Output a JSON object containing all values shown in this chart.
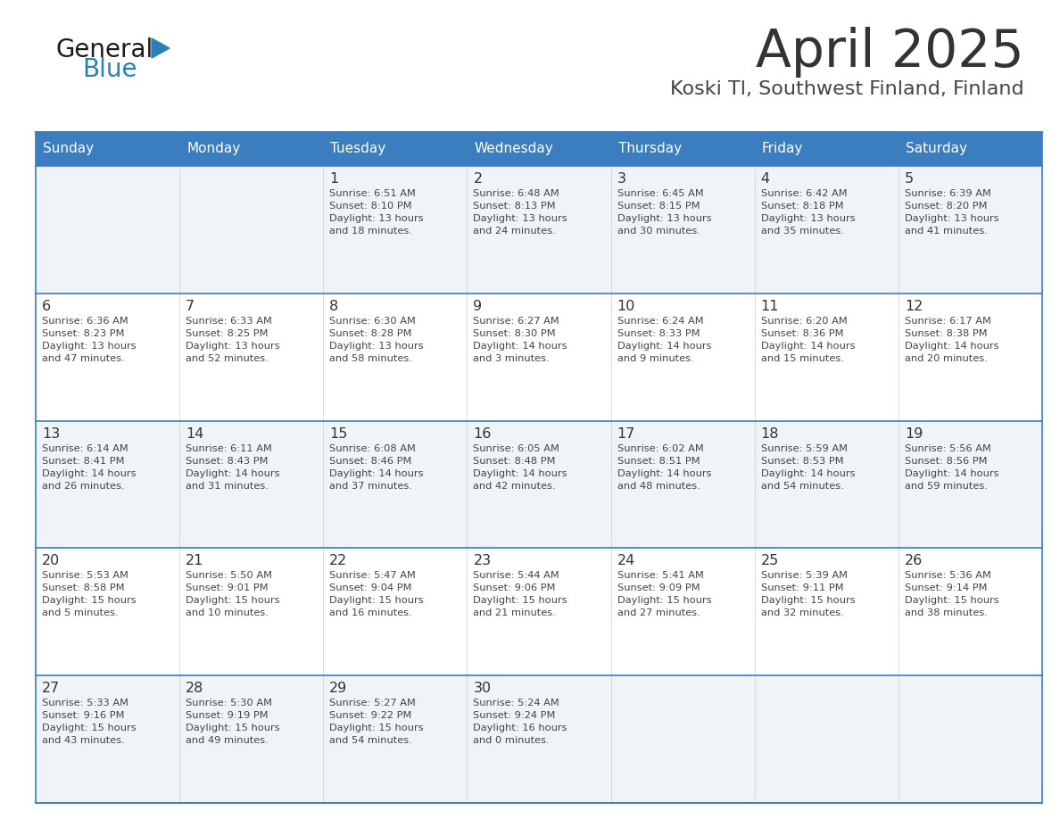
{
  "title": "April 2025",
  "subtitle": "Koski Tl, Southwest Finland, Finland",
  "days_of_week": [
    "Sunday",
    "Monday",
    "Tuesday",
    "Wednesday",
    "Thursday",
    "Friday",
    "Saturday"
  ],
  "header_bg": "#3a7ebf",
  "header_text": "#ffffff",
  "row_bg_odd": "#f0f4f8",
  "row_bg_even": "#ffffff",
  "cell_border_color": "#3a7ebf",
  "row_divider_color": "#3a7ebf",
  "day_number_color": "#333333",
  "info_text_color": "#444444",
  "title_color": "#333333",
  "subtitle_color": "#444444",
  "logo_general_color": "#1a1a1a",
  "logo_blue_color": "#2980b9",
  "logo_triangle_color": "#2980b9",
  "calendar_data": [
    [
      {
        "day": null,
        "info": ""
      },
      {
        "day": null,
        "info": ""
      },
      {
        "day": 1,
        "info": "Sunrise: 6:51 AM\nSunset: 8:10 PM\nDaylight: 13 hours\nand 18 minutes."
      },
      {
        "day": 2,
        "info": "Sunrise: 6:48 AM\nSunset: 8:13 PM\nDaylight: 13 hours\nand 24 minutes."
      },
      {
        "day": 3,
        "info": "Sunrise: 6:45 AM\nSunset: 8:15 PM\nDaylight: 13 hours\nand 30 minutes."
      },
      {
        "day": 4,
        "info": "Sunrise: 6:42 AM\nSunset: 8:18 PM\nDaylight: 13 hours\nand 35 minutes."
      },
      {
        "day": 5,
        "info": "Sunrise: 6:39 AM\nSunset: 8:20 PM\nDaylight: 13 hours\nand 41 minutes."
      }
    ],
    [
      {
        "day": 6,
        "info": "Sunrise: 6:36 AM\nSunset: 8:23 PM\nDaylight: 13 hours\nand 47 minutes."
      },
      {
        "day": 7,
        "info": "Sunrise: 6:33 AM\nSunset: 8:25 PM\nDaylight: 13 hours\nand 52 minutes."
      },
      {
        "day": 8,
        "info": "Sunrise: 6:30 AM\nSunset: 8:28 PM\nDaylight: 13 hours\nand 58 minutes."
      },
      {
        "day": 9,
        "info": "Sunrise: 6:27 AM\nSunset: 8:30 PM\nDaylight: 14 hours\nand 3 minutes."
      },
      {
        "day": 10,
        "info": "Sunrise: 6:24 AM\nSunset: 8:33 PM\nDaylight: 14 hours\nand 9 minutes."
      },
      {
        "day": 11,
        "info": "Sunrise: 6:20 AM\nSunset: 8:36 PM\nDaylight: 14 hours\nand 15 minutes."
      },
      {
        "day": 12,
        "info": "Sunrise: 6:17 AM\nSunset: 8:38 PM\nDaylight: 14 hours\nand 20 minutes."
      }
    ],
    [
      {
        "day": 13,
        "info": "Sunrise: 6:14 AM\nSunset: 8:41 PM\nDaylight: 14 hours\nand 26 minutes."
      },
      {
        "day": 14,
        "info": "Sunrise: 6:11 AM\nSunset: 8:43 PM\nDaylight: 14 hours\nand 31 minutes."
      },
      {
        "day": 15,
        "info": "Sunrise: 6:08 AM\nSunset: 8:46 PM\nDaylight: 14 hours\nand 37 minutes."
      },
      {
        "day": 16,
        "info": "Sunrise: 6:05 AM\nSunset: 8:48 PM\nDaylight: 14 hours\nand 42 minutes."
      },
      {
        "day": 17,
        "info": "Sunrise: 6:02 AM\nSunset: 8:51 PM\nDaylight: 14 hours\nand 48 minutes."
      },
      {
        "day": 18,
        "info": "Sunrise: 5:59 AM\nSunset: 8:53 PM\nDaylight: 14 hours\nand 54 minutes."
      },
      {
        "day": 19,
        "info": "Sunrise: 5:56 AM\nSunset: 8:56 PM\nDaylight: 14 hours\nand 59 minutes."
      }
    ],
    [
      {
        "day": 20,
        "info": "Sunrise: 5:53 AM\nSunset: 8:58 PM\nDaylight: 15 hours\nand 5 minutes."
      },
      {
        "day": 21,
        "info": "Sunrise: 5:50 AM\nSunset: 9:01 PM\nDaylight: 15 hours\nand 10 minutes."
      },
      {
        "day": 22,
        "info": "Sunrise: 5:47 AM\nSunset: 9:04 PM\nDaylight: 15 hours\nand 16 minutes."
      },
      {
        "day": 23,
        "info": "Sunrise: 5:44 AM\nSunset: 9:06 PM\nDaylight: 15 hours\nand 21 minutes."
      },
      {
        "day": 24,
        "info": "Sunrise: 5:41 AM\nSunset: 9:09 PM\nDaylight: 15 hours\nand 27 minutes."
      },
      {
        "day": 25,
        "info": "Sunrise: 5:39 AM\nSunset: 9:11 PM\nDaylight: 15 hours\nand 32 minutes."
      },
      {
        "day": 26,
        "info": "Sunrise: 5:36 AM\nSunset: 9:14 PM\nDaylight: 15 hours\nand 38 minutes."
      }
    ],
    [
      {
        "day": 27,
        "info": "Sunrise: 5:33 AM\nSunset: 9:16 PM\nDaylight: 15 hours\nand 43 minutes."
      },
      {
        "day": 28,
        "info": "Sunrise: 5:30 AM\nSunset: 9:19 PM\nDaylight: 15 hours\nand 49 minutes."
      },
      {
        "day": 29,
        "info": "Sunrise: 5:27 AM\nSunset: 9:22 PM\nDaylight: 15 hours\nand 54 minutes."
      },
      {
        "day": 30,
        "info": "Sunrise: 5:24 AM\nSunset: 9:24 PM\nDaylight: 16 hours\nand 0 minutes."
      },
      {
        "day": null,
        "info": ""
      },
      {
        "day": null,
        "info": ""
      },
      {
        "day": null,
        "info": ""
      }
    ]
  ]
}
